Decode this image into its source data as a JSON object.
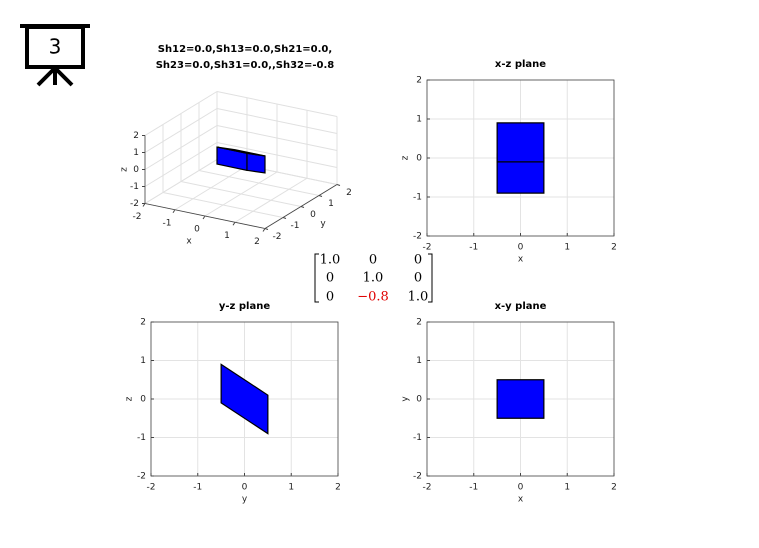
{
  "slide_number": "3",
  "matrix": {
    "rows": [
      [
        "1.0",
        "0",
        "0"
      ],
      [
        "0",
        "1.0",
        "0"
      ],
      [
        "0",
        "−0.8",
        "1.0"
      ]
    ],
    "highlight": [
      2,
      1
    ],
    "highlight_color": "#e00000"
  },
  "chart_data": [
    {
      "type": "polygon3d",
      "title": [
        "Sh12=0.0,Sh13=0.0,Sh21=0.0,",
        "Sh23=0.0,Sh31=0.0,,Sh32=-0.8"
      ],
      "xlabel": "x",
      "ylabel": "y",
      "zlabel": "z",
      "xlim": [
        -2,
        2
      ],
      "ylim": [
        -2,
        2
      ],
      "zlim": [
        -2,
        2
      ],
      "xticks": [
        -2,
        -1,
        0,
        1,
        2
      ],
      "yticks": [
        -2,
        -1,
        0,
        1,
        2
      ],
      "zticks": [
        -2,
        -1,
        0,
        1,
        2
      ],
      "grid": true,
      "color": "#0000ff",
      "polygons": [
        {
          "x": [
            -0.5,
            0.5,
            0.5,
            -0.5
          ],
          "y": [
            -0.5,
            -0.5,
            -0.5,
            -0.5
          ],
          "z": [
            -0.1,
            -0.1,
            0.9,
            0.9
          ]
        },
        {
          "x": [
            0.5,
            0.5,
            0.5,
            0.5
          ],
          "y": [
            -0.5,
            0.5,
            0.5,
            -0.5
          ],
          "z": [
            -0.1,
            -0.9,
            0.1,
            0.9
          ]
        },
        {
          "x": [
            -0.5,
            0.5,
            0.5,
            -0.5
          ],
          "y": [
            -0.5,
            -0.5,
            0.5,
            0.5
          ],
          "z": [
            0.9,
            0.9,
            0.1,
            0.1
          ]
        }
      ]
    },
    {
      "type": "polygon",
      "title": "x-z plane",
      "xlabel": "x",
      "ylabel": "z",
      "xlim": [
        -2,
        2
      ],
      "ylim": [
        -2,
        2
      ],
      "xticks": [
        -2,
        -1,
        0,
        1,
        2
      ],
      "yticks": [
        -2,
        -1,
        0,
        1,
        2
      ],
      "grid": true,
      "color": "#0000ff",
      "polygons": [
        {
          "x": [
            -0.5,
            0.5,
            0.5,
            -0.5
          ],
          "y": [
            -0.9,
            -0.9,
            0.1,
            0.1
          ]
        },
        {
          "x": [
            -0.5,
            0.5,
            0.5,
            -0.5
          ],
          "y": [
            -0.1,
            -0.1,
            0.9,
            0.9
          ]
        }
      ]
    },
    {
      "type": "polygon",
      "title": "y-z plane",
      "xlabel": "y",
      "ylabel": "z",
      "xlim": [
        -2,
        2
      ],
      "ylim": [
        -2,
        2
      ],
      "xticks": [
        -2,
        -1,
        0,
        1,
        2
      ],
      "yticks": [
        -2,
        -1,
        0,
        1,
        2
      ],
      "grid": true,
      "color": "#0000ff",
      "polygons": [
        {
          "x": [
            -0.5,
            0.5,
            0.5,
            -0.5
          ],
          "y": [
            -0.1,
            -0.9,
            0.1,
            0.9
          ]
        }
      ]
    },
    {
      "type": "polygon",
      "title": "x-y plane",
      "xlabel": "x",
      "ylabel": "y",
      "xlim": [
        -2,
        2
      ],
      "ylim": [
        -2,
        2
      ],
      "xticks": [
        -2,
        -1,
        0,
        1,
        2
      ],
      "yticks": [
        -2,
        -1,
        0,
        1,
        2
      ],
      "grid": true,
      "color": "#0000ff",
      "polygons": [
        {
          "x": [
            -0.5,
            0.5,
            0.5,
            -0.5
          ],
          "y": [
            -0.5,
            -0.5,
            0.5,
            0.5
          ]
        }
      ]
    }
  ]
}
